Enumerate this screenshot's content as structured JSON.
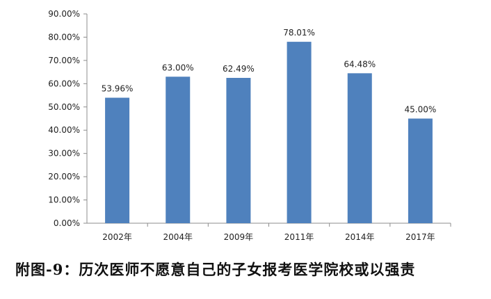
{
  "chart_data": {
    "type": "bar",
    "categories": [
      "2002年",
      "2004年",
      "2009年",
      "2011年",
      "2014年",
      "2017年"
    ],
    "values": [
      53.96,
      63.0,
      62.49,
      78.01,
      64.48,
      45.0
    ],
    "data_labels": [
      "53.96%",
      "63.00%",
      "62.49%",
      "78.01%",
      "64.48%",
      "45.00%"
    ],
    "title": "",
    "xlabel": "",
    "ylabel": "",
    "ylim": [
      0,
      90
    ],
    "yticks": [
      "0.00%",
      "10.00%",
      "20.00%",
      "30.00%",
      "40.00%",
      "50.00%",
      "60.00%",
      "70.00%",
      "80.00%",
      "90.00%"
    ],
    "grid": false,
    "bar_color": "#4F81BD"
  },
  "caption": "附图-9：历次医师不愿意自己的子女报考医学院校或以强责"
}
